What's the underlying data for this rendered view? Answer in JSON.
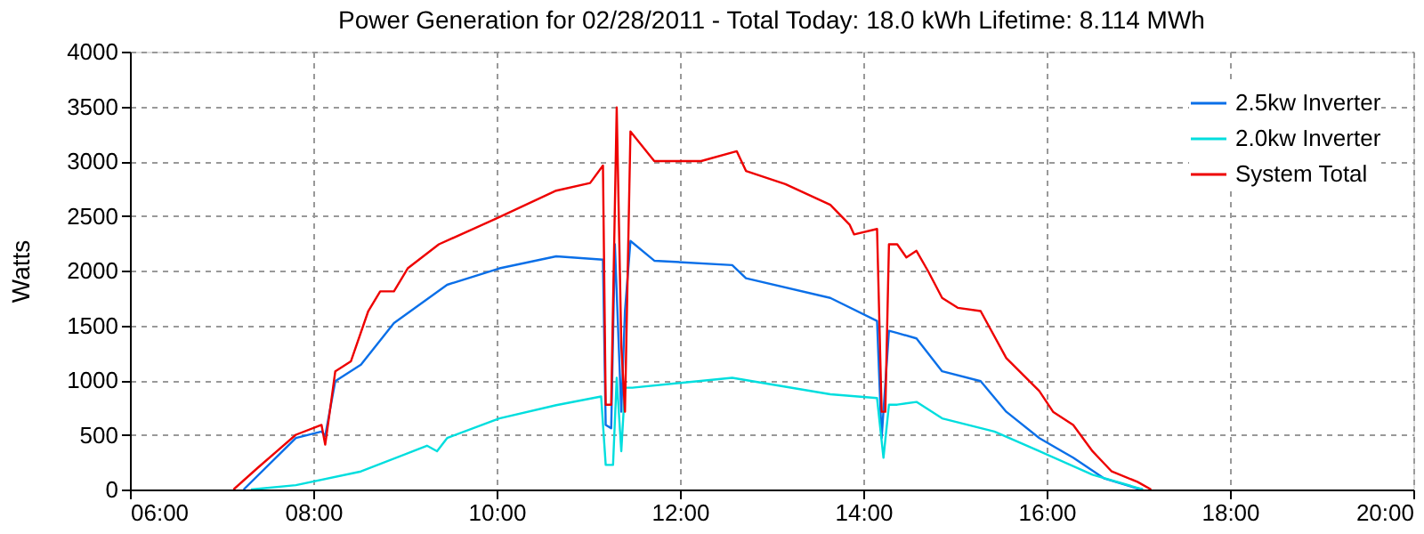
{
  "chart_data": {
    "type": "line",
    "title": "Power Generation for 02/28/2011 - Total Today: 18.0 kWh   Lifetime: 8.114 MWh",
    "ylabel": "Watts",
    "xlim": [
      6,
      20
    ],
    "xticks": [
      {
        "value": 6,
        "label": "06:00"
      },
      {
        "value": 8,
        "label": "08:00"
      },
      {
        "value": 10,
        "label": "10:00"
      },
      {
        "value": 12,
        "label": "12:00"
      },
      {
        "value": 14,
        "label": "14:00"
      },
      {
        "value": 16,
        "label": "16:00"
      },
      {
        "value": 18,
        "label": "18:00"
      },
      {
        "value": 20,
        "label": "20:00"
      }
    ],
    "ylim": [
      0,
      4000
    ],
    "yticks": [
      0,
      500,
      1000,
      1500,
      2000,
      2500,
      3000,
      3500,
      4000
    ],
    "grid": true,
    "legend": "top right",
    "marker": "none",
    "line_style": "solid",
    "series": [
      {
        "name": "2.5kw Inverter",
        "color": "#0a6fe8",
        "x": [
          7.24,
          7.81,
          8.09,
          8.13,
          8.24,
          8.52,
          8.88,
          9.46,
          10.03,
          10.65,
          11.16,
          11.19,
          11.25,
          11.29,
          11.36,
          11.4,
          11.46,
          11.72,
          12.57,
          12.72,
          13.64,
          14.15,
          14.2,
          14.28,
          14.37,
          14.58,
          14.86,
          15.28,
          15.56,
          15.92,
          16.29,
          16.63,
          16.99,
          17.05
        ],
        "values": [
          0,
          470,
          530,
          490,
          990,
          1140,
          1520,
          1870,
          2020,
          2130,
          2100,
          590,
          560,
          2240,
          710,
          1630,
          2270,
          2090,
          2050,
          1930,
          1750,
          1540,
          470,
          1450,
          1430,
          1380,
          1080,
          990,
          710,
          470,
          290,
          100,
          10,
          0
        ]
      },
      {
        "name": "2.0kw Inverter",
        "color": "#00dede",
        "x": [
          7.32,
          7.81,
          8.52,
          9.09,
          9.24,
          9.35,
          9.46,
          10.03,
          10.65,
          11.14,
          11.19,
          11.27,
          11.31,
          11.36,
          11.4,
          11.48,
          12.57,
          13.64,
          14.15,
          14.22,
          14.28,
          14.37,
          14.58,
          14.86,
          15.43,
          15.92,
          16.5,
          16.93,
          17.05
        ],
        "values": [
          0,
          40,
          165,
          350,
          400,
          350,
          470,
          650,
          770,
          850,
          225,
          225,
          1020,
          350,
          930,
          930,
          1020,
          870,
          835,
          290,
          775,
          775,
          800,
          650,
          530,
          350,
          135,
          30,
          0
        ]
      },
      {
        "name": "System Total",
        "color": "#ee0000",
        "x": [
          7.13,
          7.39,
          7.81,
          8.09,
          8.13,
          8.18,
          8.24,
          8.41,
          8.6,
          8.73,
          8.88,
          9.03,
          9.37,
          10.01,
          10.65,
          11.02,
          11.16,
          11.19,
          11.25,
          11.31,
          11.36,
          11.4,
          11.46,
          11.72,
          12.23,
          12.62,
          12.72,
          13.15,
          13.64,
          13.85,
          13.9,
          14.15,
          14.2,
          14.24,
          14.28,
          14.37,
          14.47,
          14.58,
          14.71,
          14.86,
          15.03,
          15.28,
          15.56,
          15.92,
          16.07,
          16.29,
          16.5,
          16.71,
          16.99,
          17.14
        ],
        "values": [
          0,
          195,
          500,
          590,
          410,
          710,
          1080,
          1170,
          1630,
          1810,
          1810,
          2020,
          2240,
          2480,
          2730,
          2800,
          2960,
          775,
          775,
          3490,
          1320,
          710,
          3270,
          3000,
          3000,
          3090,
          2910,
          2790,
          2600,
          2420,
          2330,
          2380,
          710,
          710,
          2240,
          2240,
          2120,
          2180,
          1990,
          1750,
          1660,
          1630,
          1200,
          900,
          710,
          590,
          350,
          165,
          70,
          0
        ]
      }
    ]
  }
}
